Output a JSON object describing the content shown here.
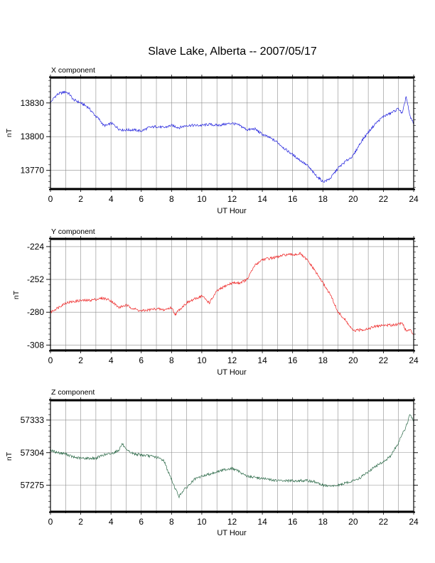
{
  "title": "Slave Lake, Alberta -- 2007/05/17",
  "colors": {
    "x": "#2222dd",
    "y": "#ee2222",
    "z": "#2e6b4a",
    "grid": "#8c8c8c",
    "axis": "#000000"
  },
  "chart_data": [
    {
      "type": "line",
      "component": "x",
      "title": "X component",
      "xlabel": "UT Hour",
      "ylabel": "nT",
      "xlim": [
        0,
        24
      ],
      "ylim": [
        13754,
        13852
      ],
      "xticks": [
        0,
        2,
        4,
        6,
        8,
        10,
        12,
        14,
        16,
        18,
        20,
        22,
        24
      ],
      "yticks": [
        13770,
        13800,
        13830
      ],
      "grid": true,
      "series": [
        {
          "x": [
            0,
            0.25,
            0.5,
            0.75,
            1.0,
            1.25,
            1.5,
            2.0,
            2.5,
            2.75,
            3.0,
            3.25,
            3.5,
            3.75,
            4.0,
            4.25,
            4.5,
            4.75,
            5.0,
            5.5,
            6.0,
            6.5,
            7.0,
            7.5,
            8.0,
            8.5,
            9.0,
            9.5,
            10.0,
            10.5,
            11.0,
            11.5,
            12.0,
            12.5,
            13.0,
            13.5,
            14.0,
            14.5,
            15.0,
            15.5,
            16.0,
            16.5,
            17.0,
            17.5,
            18.0,
            18.25,
            18.5,
            19.0,
            19.5,
            20.0,
            20.5,
            21.0,
            21.5,
            22.0,
            22.5,
            22.75,
            23.0,
            23.25,
            23.5,
            23.75,
            24.0
          ],
          "values": [
            13830,
            13835,
            13838,
            13839,
            13840,
            13838,
            13833,
            13830,
            13826,
            13822,
            13818,
            13815,
            13810,
            13810,
            13812,
            13810,
            13807,
            13806,
            13806,
            13806,
            13805,
            13808,
            13809,
            13808,
            13810,
            13808,
            13810,
            13810,
            13810,
            13811,
            13810,
            13811,
            13812,
            13810,
            13806,
            13807,
            13802,
            13799,
            13795,
            13789,
            13784,
            13779,
            13774,
            13766,
            13760,
            13761,
            13763,
            13772,
            13778,
            13783,
            13795,
            13804,
            13812,
            13818,
            13821,
            13823,
            13825,
            13820,
            13836,
            13818,
            13812
          ]
        }
      ]
    },
    {
      "type": "line",
      "component": "y",
      "title": "Y component",
      "xlabel": "UT Hour",
      "ylabel": "nT",
      "xlim": [
        0,
        24
      ],
      "ylim": [
        -312,
        -218
      ],
      "xticks": [
        0,
        2,
        4,
        6,
        8,
        10,
        12,
        14,
        16,
        18,
        20,
        22,
        24
      ],
      "yticks": [
        -224,
        -252,
        -280,
        -308
      ],
      "grid": true,
      "series": [
        {
          "x": [
            0,
            0.5,
            1.0,
            1.5,
            2.0,
            2.5,
            3.0,
            3.5,
            4.0,
            4.5,
            5.0,
            5.5,
            6.0,
            6.5,
            7.0,
            7.5,
            8.0,
            8.25,
            8.5,
            9.0,
            9.5,
            10.0,
            10.5,
            11.0,
            11.5,
            12.0,
            12.5,
            13.0,
            13.5,
            14.0,
            14.5,
            15.0,
            15.5,
            16.0,
            16.5,
            17.0,
            17.5,
            18.0,
            18.5,
            19.0,
            19.5,
            20.0,
            20.5,
            21.0,
            21.5,
            22.0,
            22.5,
            23.0,
            23.25,
            23.5,
            23.75,
            24.0
          ],
          "values": [
            -280,
            -276,
            -272,
            -271,
            -270,
            -270,
            -269,
            -268,
            -270,
            -276,
            -274,
            -277,
            -279,
            -278,
            -277,
            -278,
            -276,
            -282,
            -278,
            -272,
            -269,
            -266,
            -272,
            -262,
            -258,
            -255,
            -255,
            -252,
            -240,
            -235,
            -234,
            -233,
            -231,
            -231,
            -230,
            -236,
            -245,
            -255,
            -265,
            -280,
            -287,
            -296,
            -295,
            -294,
            -292,
            -291,
            -291,
            -290,
            -289,
            -296,
            -295,
            -299
          ]
        }
      ]
    },
    {
      "type": "line",
      "component": "z",
      "title": "Z component",
      "xlabel": "UT Hour",
      "ylabel": "nT",
      "xlim": [
        0,
        24
      ],
      "ylim": [
        57252,
        57350
      ],
      "xticks": [
        0,
        2,
        4,
        6,
        8,
        10,
        12,
        14,
        16,
        18,
        20,
        22,
        24
      ],
      "yticks": [
        57275,
        57304,
        57333
      ],
      "grid": true,
      "series": [
        {
          "x": [
            0,
            0.5,
            1.0,
            1.5,
            2.0,
            2.5,
            3.0,
            3.5,
            4.0,
            4.5,
            4.75,
            5.0,
            5.5,
            6.0,
            6.5,
            7.0,
            7.5,
            7.75,
            8.0,
            8.25,
            8.5,
            8.75,
            9.0,
            9.5,
            10.0,
            10.5,
            11.0,
            11.5,
            12.0,
            12.5,
            13.0,
            13.5,
            14.0,
            14.5,
            15.0,
            15.5,
            16.0,
            16.5,
            17.0,
            17.5,
            18.0,
            18.5,
            19.0,
            19.5,
            20.0,
            20.5,
            21.0,
            21.5,
            22.0,
            22.5,
            23.0,
            23.25,
            23.5,
            23.75,
            24.0
          ],
          "values": [
            57306,
            57304,
            57303,
            57300,
            57299,
            57299,
            57299,
            57302,
            57303,
            57306,
            57312,
            57306,
            57303,
            57302,
            57301,
            57300,
            57297,
            57288,
            57280,
            57272,
            57265,
            57270,
            57273,
            57280,
            57283,
            57285,
            57287,
            57289,
            57290,
            57287,
            57283,
            57282,
            57281,
            57280,
            57279,
            57279,
            57279,
            57279,
            57279,
            57278,
            57275,
            57274,
            57275,
            57277,
            57279,
            57282,
            57287,
            57292,
            57296,
            57301,
            57313,
            57321,
            57327,
            57338,
            57332
          ]
        }
      ]
    }
  ]
}
